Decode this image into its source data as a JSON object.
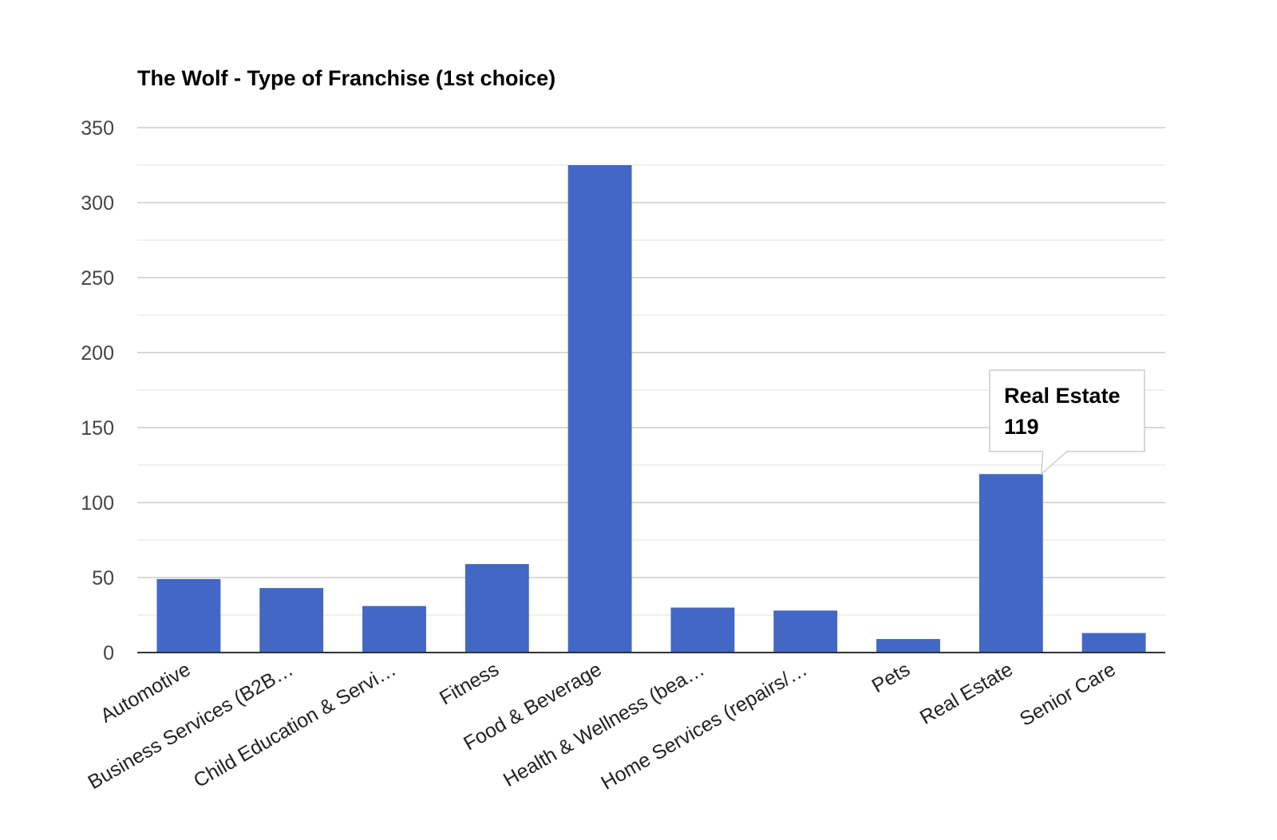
{
  "chart_data": {
    "type": "bar",
    "title": "The Wolf - Type of Franchise (1st choice)",
    "xlabel": "",
    "ylabel": "",
    "categories": [
      "Automotive",
      "Business Services (B2B…",
      "Child Education & Servi…",
      "Fitness",
      "Food & Beverage",
      "Health & Wellness (bea…",
      "Home Services (repairs/…",
      "Pets",
      "Real Estate",
      "Senior Care"
    ],
    "values": [
      49,
      43,
      31,
      59,
      325,
      30,
      28,
      9,
      119,
      13
    ],
    "ylim": [
      0,
      350
    ],
    "yticks": [
      0,
      50,
      100,
      150,
      200,
      250,
      300,
      350
    ],
    "grid": true,
    "legend": "none",
    "bar_color": "#4267c4",
    "tooltip": {
      "category": "Real Estate",
      "value": "119"
    }
  }
}
